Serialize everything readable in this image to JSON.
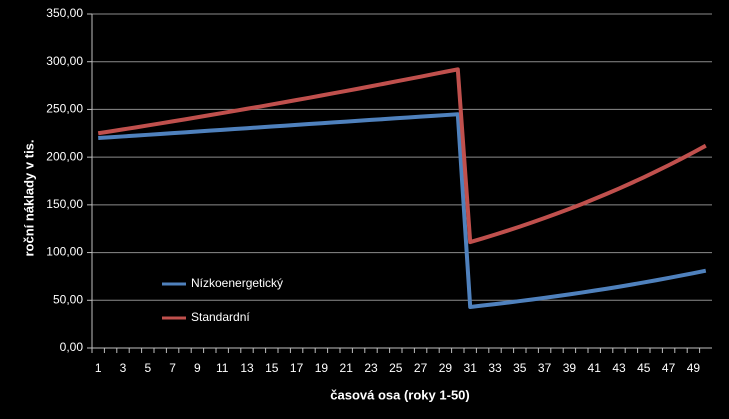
{
  "chart_data": {
    "type": "line",
    "x_label": "časová osa (roky 1-50)",
    "y_label": "roční náklady v tis.",
    "categories": [
      1,
      null,
      3,
      null,
      5,
      null,
      7,
      null,
      9,
      null,
      11,
      null,
      13,
      null,
      15,
      null,
      17,
      null,
      19,
      null,
      21,
      null,
      23,
      null,
      25,
      null,
      27,
      null,
      29,
      null,
      31,
      null,
      33,
      null,
      35,
      null,
      37,
      null,
      39,
      null,
      41,
      null,
      43,
      null,
      45,
      null,
      47,
      null,
      49,
      null
    ],
    "series": [
      {
        "name": "Nízkoenergetický",
        "color": "#4f81bd",
        "values": [
          220,
          220.9,
          221.7,
          222.6,
          223.4,
          224.3,
          225.2,
          226.0,
          226.9,
          227.8,
          228.6,
          229.5,
          230.3,
          231.2,
          232.1,
          232.9,
          233.8,
          234.7,
          235.5,
          236.4,
          237.2,
          238.1,
          239.0,
          239.8,
          240.7,
          241.6,
          242.4,
          243.3,
          244.1,
          245.0,
          43,
          44.5,
          46,
          47.5,
          49.2,
          50.8,
          52.6,
          54.4,
          56.2,
          58.1,
          60.1,
          62.1,
          64.2,
          66.4,
          68.7,
          71,
          73.4,
          75.9,
          78.4,
          81
        ]
      },
      {
        "name": "Standardní",
        "color": "#c0504d",
        "values": [
          225,
          227.0,
          229.1,
          231.1,
          233.2,
          235.3,
          237.5,
          239.6,
          241.8,
          244.0,
          246.2,
          248.4,
          250.7,
          252.9,
          255.2,
          257.5,
          259.9,
          262.2,
          264.6,
          267.0,
          269.4,
          271.8,
          274.3,
          276.8,
          279.3,
          281.8,
          284.3,
          286.9,
          289.5,
          292.0,
          111,
          114.8,
          118.8,
          122.9,
          127.2,
          131.6,
          136.2,
          140.9,
          145.8,
          150.8,
          156.1,
          161.5,
          167.1,
          172.9,
          178.9,
          185.1,
          191.5,
          198.1,
          205.0,
          212.0
        ]
      }
    ],
    "ylim": [
      0,
      350
    ],
    "yticks": [
      {
        "value": 0,
        "label": "0,00"
      },
      {
        "value": 50,
        "label": "50,00"
      },
      {
        "value": 100,
        "label": "100,00"
      },
      {
        "value": 150,
        "label": "150,00"
      },
      {
        "value": 200,
        "label": "200,00"
      },
      {
        "value": 250,
        "label": "250,00"
      },
      {
        "value": 300,
        "label": "300,00"
      },
      {
        "value": 350,
        "label": "350,00"
      }
    ],
    "grid": true,
    "legend": "lower left"
  }
}
